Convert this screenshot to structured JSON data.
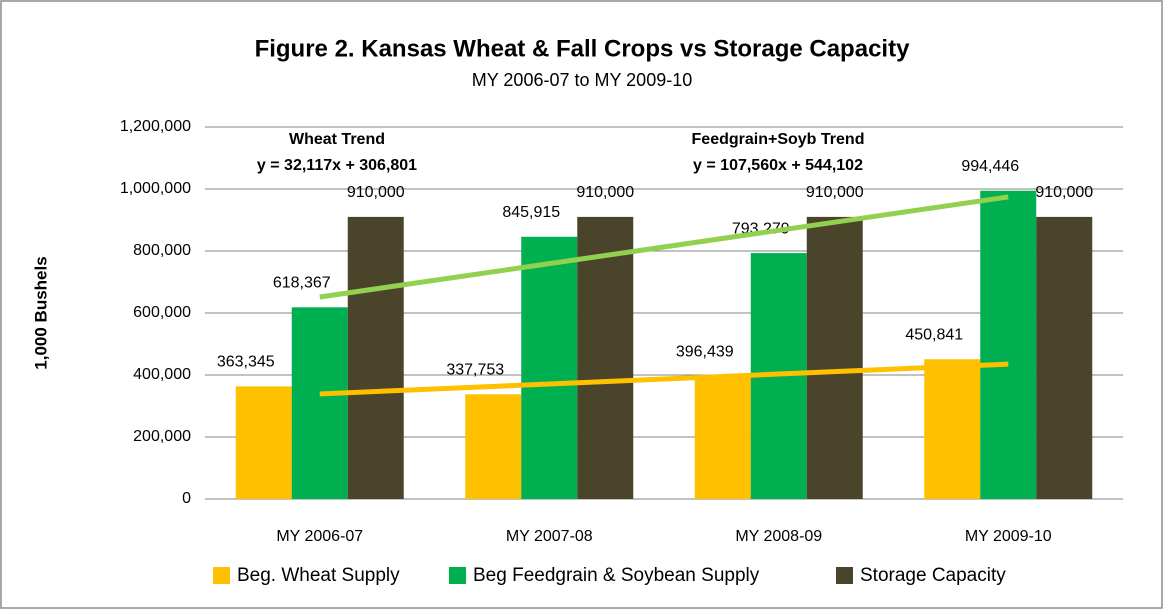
{
  "chart_data": {
    "type": "bar",
    "title": "Figure 2. Kansas Wheat & Fall Crops vs Storage Capacity",
    "subtitle": "MY 2006-07 to MY 2009-10",
    "y_label": "1,000 Bushels",
    "categories": [
      "MY 2006-07",
      "MY 2007-08",
      "MY 2008-09",
      "MY 2009-10"
    ],
    "series": [
      {
        "name": "Beg. Wheat Supply",
        "color": "#ffc000",
        "values": [
          363345,
          337753,
          396439,
          450841
        ],
        "value_labels": [
          "363,345",
          "337,753",
          "396,439",
          "450,841"
        ]
      },
      {
        "name": "Beg Feedgrain & Soybean Supply",
        "color": "#00b050",
        "values": [
          618367,
          845915,
          793279,
          994446
        ],
        "value_labels": [
          "618,367",
          "845,915",
          "793,279",
          "994,446"
        ]
      },
      {
        "name": "Storage Capacity",
        "color": "#4a452a",
        "values": [
          910000,
          910000,
          910000,
          910000
        ],
        "value_labels": [
          "910,000",
          "910,000",
          "910,000",
          "910,000"
        ]
      }
    ],
    "trendlines": [
      {
        "label": "Wheat Trend",
        "equation": "y = 32,117x + 306,801",
        "color": "#ffc000",
        "text_color": "#e46c0a",
        "values": [
          338918,
          371035,
          403152,
          435269
        ]
      },
      {
        "label": "Feedgrain+Soyb Trend",
        "equation": "y = 107,560x + 544,102",
        "color": "#92d050",
        "text_color": "#4f6228",
        "values": [
          651662,
          759222,
          866782,
          974342
        ]
      }
    ],
    "ylim": [
      0,
      1200000
    ],
    "yticks": [
      0,
      {
        "value": 200000,
        "label": "200,000"
      },
      {
        "value": 400000,
        "label": "400,000"
      },
      {
        "value": 600000,
        "label": "600,000"
      },
      {
        "value": 800000,
        "label": "800,000"
      },
      {
        "value": 1000000,
        "label": "1,000,000"
      },
      {
        "value": 1200000,
        "label": "1,200,000"
      }
    ],
    "grid": true,
    "legend": "bottom"
  }
}
